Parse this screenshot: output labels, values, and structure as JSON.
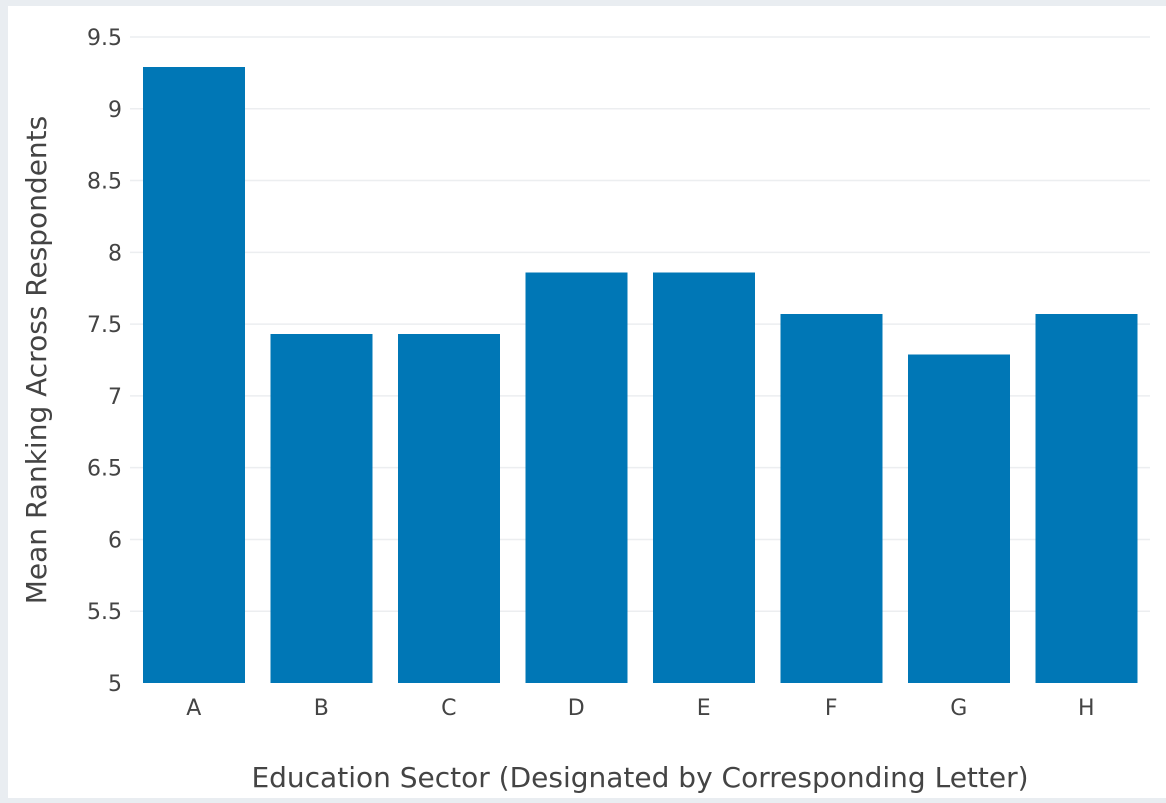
{
  "chart_data": {
    "type": "bar",
    "categories": [
      "A",
      "B",
      "C",
      "D",
      "E",
      "F",
      "G",
      "H"
    ],
    "values": [
      9.29,
      7.43,
      7.43,
      7.86,
      7.86,
      7.57,
      7.29,
      7.57
    ],
    "title": "",
    "xlabel": "Education Sector (Designated by Corresponding Letter)",
    "ylabel": "Mean Ranking Across Respondents",
    "ylim": [
      5,
      9.5
    ],
    "yticks": [
      "5",
      "5.5",
      "6",
      "6.5",
      "7",
      "7.5",
      "8",
      "8.5",
      "9",
      "9.5"
    ],
    "grid": true,
    "bar_color": "#0077b6",
    "background_color": "#ffffff",
    "frame_color": "#e9edf1"
  }
}
